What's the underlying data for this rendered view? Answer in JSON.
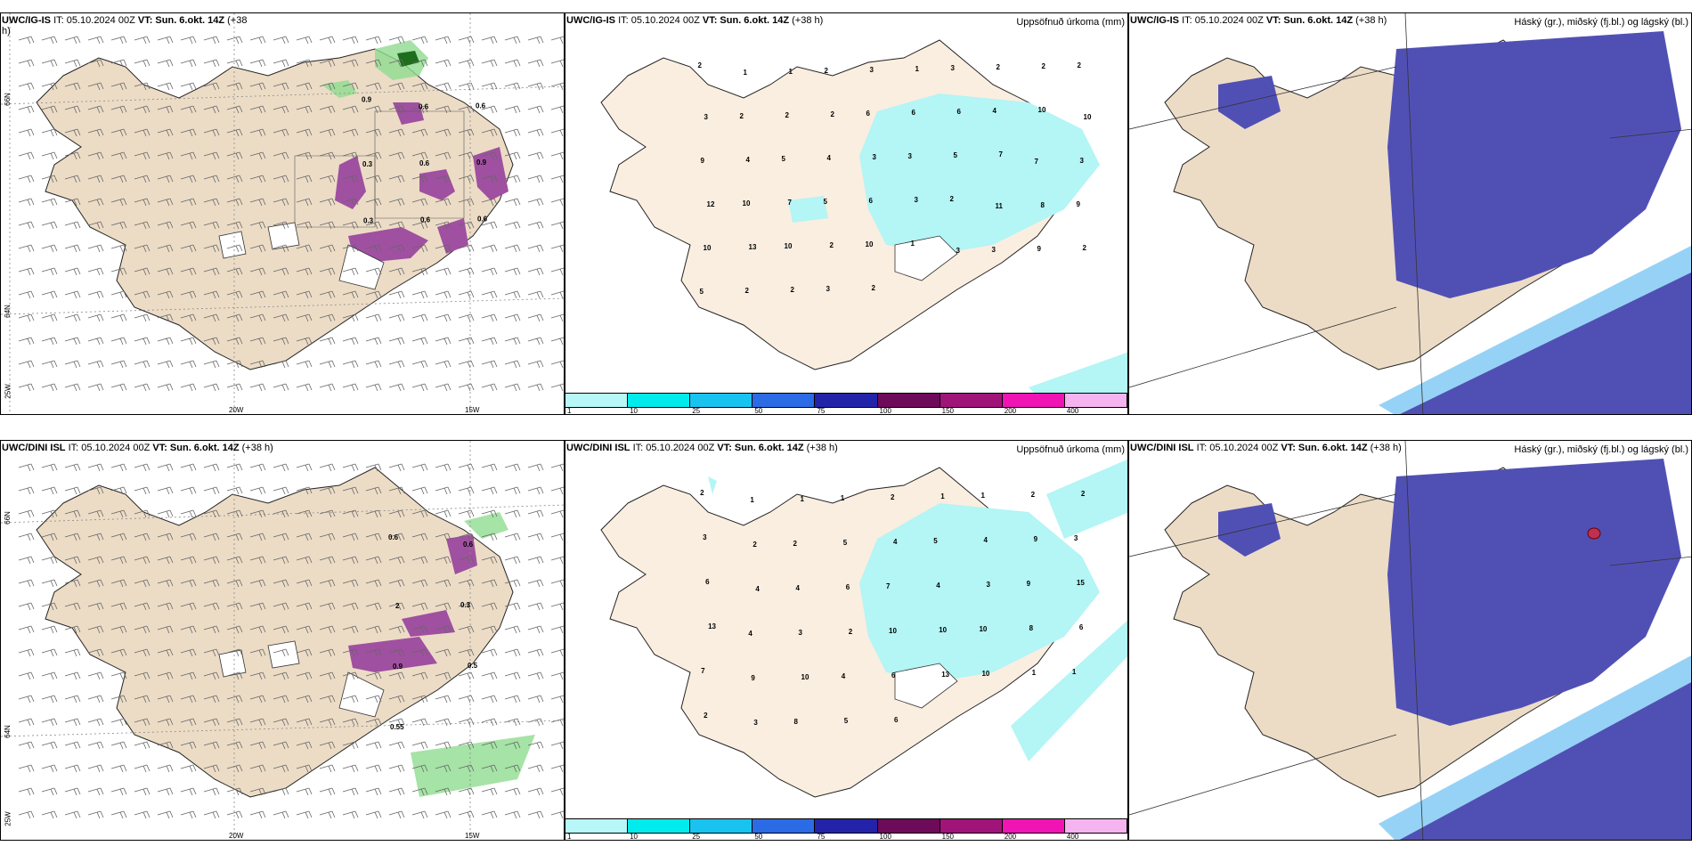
{
  "panels": {
    "top_left": {
      "title_model": "UWC/IG-IS",
      "title_it": "IT: 05.10.2024 00Z",
      "title_vt": "VT: Sun. 6.okt. 14Z",
      "title_lead": "(+38",
      "title_lead2": "h)"
    },
    "top_mid": {
      "title_model": "UWC/IG-IS",
      "title_it": "IT: 05.10.2024 00Z",
      "title_vt": "VT: Sun. 6.okt. 14Z",
      "title_lead": "(+38 h)",
      "right_title": "Uppsöfnuð úrkoma (mm)"
    },
    "top_right": {
      "title_model": "UWC/IG-IS",
      "title_it": "IT: 05.10.2024 00Z",
      "title_vt": "VT: Sun. 6.okt. 14Z",
      "title_lead": "(+38 h)",
      "right_title": "Háský (gr.), miðský (fj.bl.) og lágský (bl.)"
    },
    "bottom_left": {
      "title_model": "UWC/DINI ISL",
      "title_it": "IT: 05.10.2024 00Z",
      "title_vt": "VT: Sun. 6.okt. 14Z",
      "title_lead": "(+38 h)"
    },
    "bottom_mid": {
      "title_model": "UWC/DINI ISL",
      "title_it": "IT: 05.10.2024 00Z",
      "title_vt": "VT: Sun. 6.okt. 14Z",
      "title_lead": "(+38 h)",
      "right_title": "Uppsöfnuð úrkoma (mm)"
    },
    "bottom_right": {
      "title_model": "UWC/DINI ISL",
      "title_it": "IT: 05.10.2024 00Z",
      "title_vt": "VT: Sun. 6.okt. 14Z",
      "title_lead": "(+38 h)",
      "right_title": "Háský (gr.), miðský (fj.bl.) og lágský (bl.)"
    }
  },
  "axes": {
    "lon_20w": "20W",
    "lon_15w": "15W",
    "lon_25w": "25W",
    "lat_66n": "66N",
    "lat_64n": "64N"
  },
  "colorbar": {
    "labels": [
      "1",
      "10",
      "25",
      "50",
      "75",
      "100",
      "150",
      "200",
      "400"
    ],
    "colors": [
      "#b7f7f7",
      "#00ebeb",
      "#19c3f0",
      "#2c6be6",
      "#2323aa",
      "#6e0a5a",
      "#a0147a",
      "#f014b4",
      "#f5b4f0"
    ]
  },
  "colors": {
    "land": "#ecdcc6",
    "land_precip": "#faeee0",
    "precip_light": "#b4f5f5",
    "cloud_high": "#5050b4",
    "cloud_mid": "#3c8cf0",
    "cloud_low": "#96d2f5",
    "purple": "#a050a0",
    "green": "#90dc90"
  },
  "labels_top_left": [
    "0.9",
    "0.6",
    "0.6",
    "0.3",
    "0.6",
    "0.9",
    "0.3",
    "0.6",
    "0.6"
  ],
  "labels_bottom_left": [
    "0.6",
    "0.6",
    "2",
    "0.3",
    "0.9",
    "0.5",
    "0.55"
  ],
  "labels_top_mid": [
    "2",
    "1",
    "1",
    "2",
    "3",
    "1",
    "3",
    "2",
    "2",
    "2",
    "3",
    "2",
    "2",
    "2",
    "6",
    "6",
    "6",
    "4",
    "10",
    "10",
    "9",
    "4",
    "5",
    "4",
    "3",
    "3",
    "5",
    "7",
    "7",
    "3",
    "12",
    "10",
    "7",
    "5",
    "6",
    "3",
    "2",
    "11",
    "8",
    "9",
    "10",
    "13",
    "10",
    "2",
    "10",
    "1",
    "3",
    "3",
    "9",
    "2",
    "5",
    "2",
    "2",
    "3",
    "2"
  ],
  "labels_bottom_mid": [
    "2",
    "1",
    "1",
    "1",
    "2",
    "1",
    "1",
    "2",
    "2",
    "3",
    "2",
    "2",
    "5",
    "4",
    "5",
    "4",
    "9",
    "3",
    "6",
    "4",
    "4",
    "6",
    "7",
    "4",
    "3",
    "9",
    "15",
    "13",
    "4",
    "3",
    "2",
    "10",
    "10",
    "10",
    "8",
    "6",
    "7",
    "9",
    "10",
    "4",
    "6",
    "13",
    "10",
    "1",
    "1",
    "2",
    "3",
    "8",
    "5",
    "6"
  ]
}
